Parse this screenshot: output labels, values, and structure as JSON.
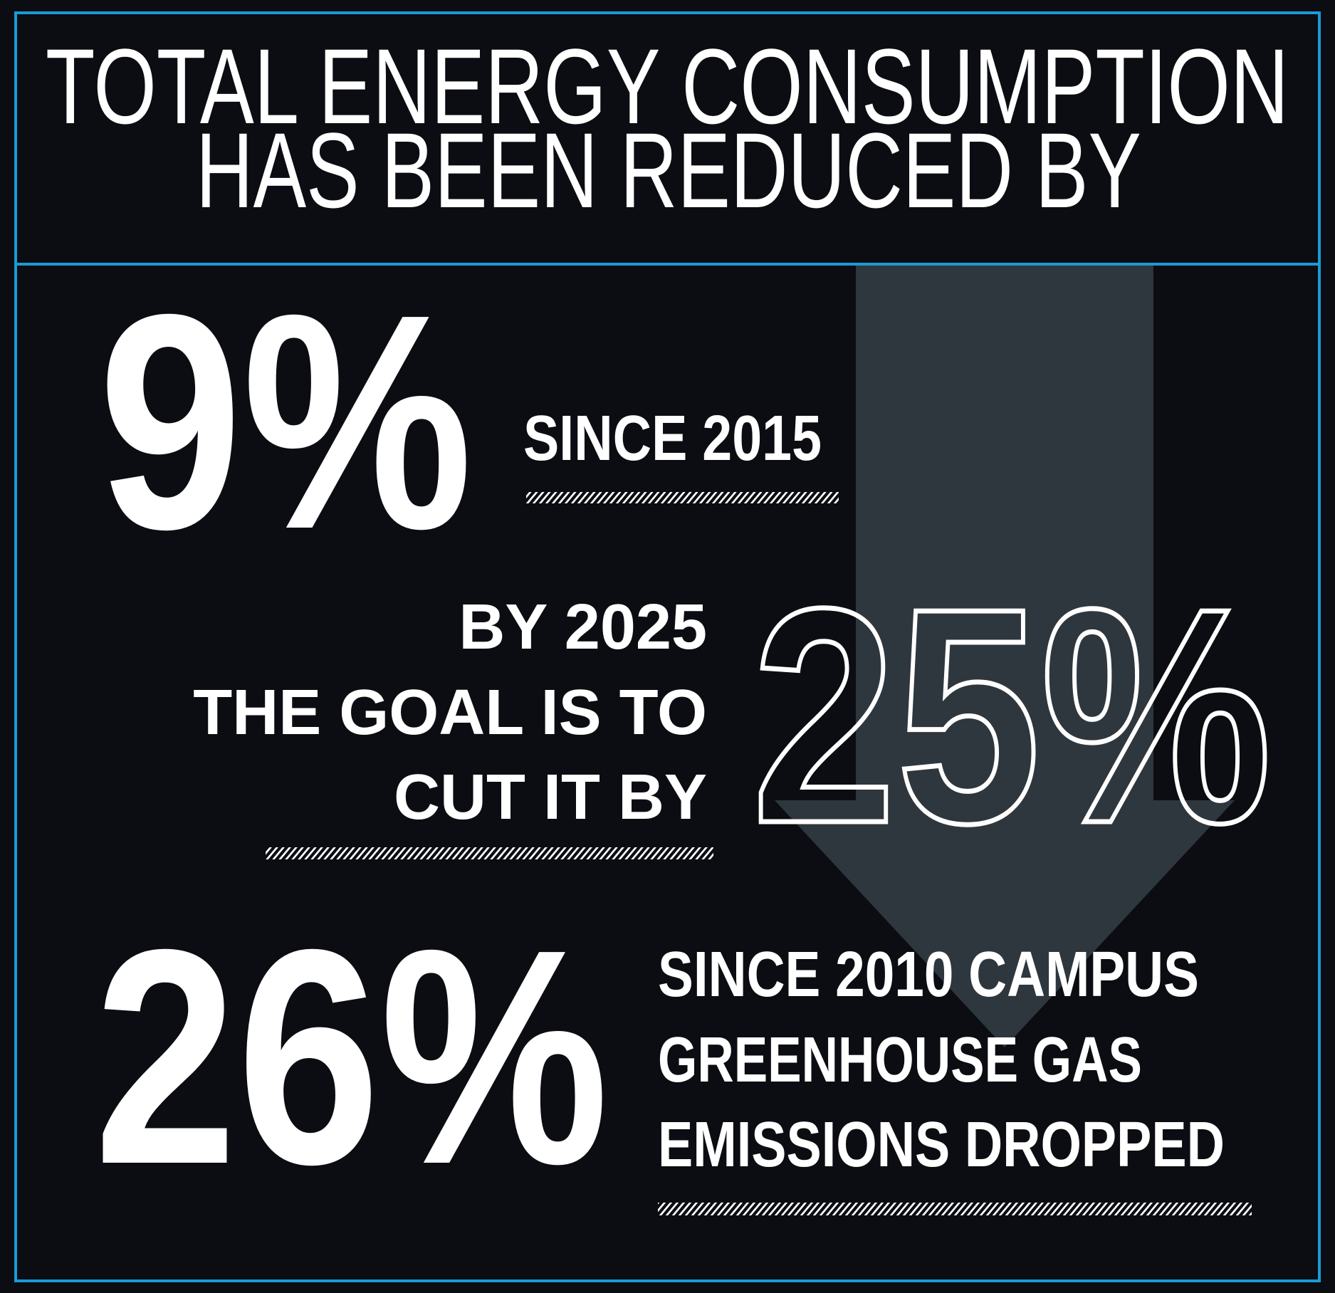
{
  "header": {
    "lines": [
      "TOTAL ENERGY CONSUMPTION",
      "HAS BEEN REDUCED BY"
    ]
  },
  "stats": [
    {
      "value": "9%",
      "lines": [
        "SINCE 2015"
      ]
    },
    {
      "value": "25%",
      "lines": [
        "BY 2025",
        "THE GOAL IS TO",
        "CUT IT BY"
      ]
    },
    {
      "value": "26%",
      "lines": [
        "SINCE 2010 CAMPUS",
        "GREENHOUSE GAS",
        "EMISSIONS DROPPED"
      ]
    }
  ]
}
